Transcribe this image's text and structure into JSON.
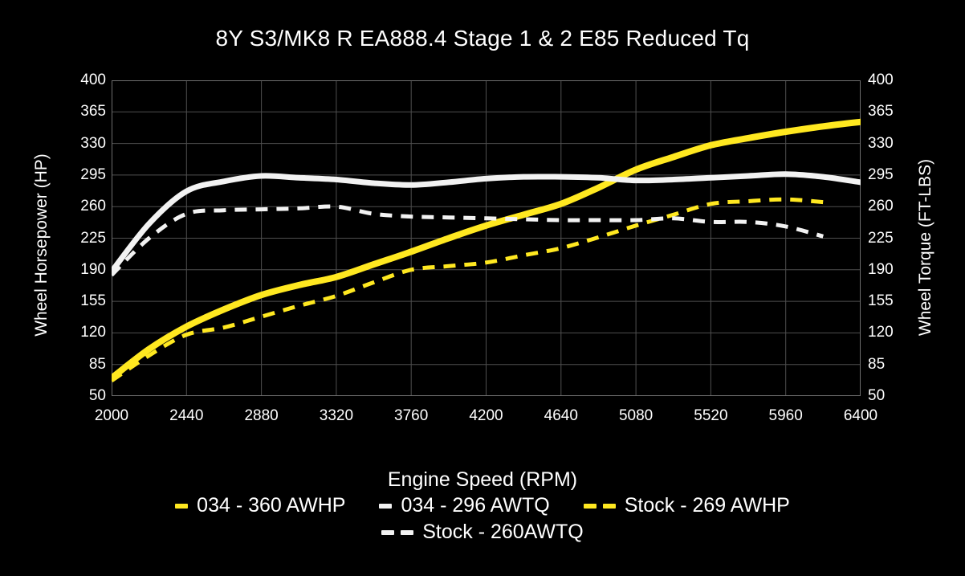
{
  "title": "8Y S3/MK8 R EA888.4 Stage 1 & 2 E85 Reduced Tq",
  "colors": {
    "background": "#000000",
    "text": "#ffffff",
    "grid": "#4f4f4f",
    "plot_border": "#6e6e6e",
    "accent_yellow": "#ffe820",
    "accent_white": "#f2f2f2"
  },
  "chart_data": {
    "type": "line",
    "title": "8Y S3/MK8 R EA888.4 Stage 1 & 2 E85 Reduced Tq",
    "xlabel": "Engine Speed (RPM)",
    "ylabel_left": "Wheel Horsepower (HP)",
    "ylabel_right": "Wheel Torque (FT-LBS)",
    "xlim": [
      2000,
      6400
    ],
    "ylim": [
      50,
      400
    ],
    "x_ticks": [
      2000,
      2440,
      2880,
      3320,
      3760,
      4200,
      4640,
      5080,
      5520,
      5960,
      6400
    ],
    "y_ticks": [
      50,
      85,
      120,
      155,
      190,
      225,
      260,
      295,
      330,
      365,
      400
    ],
    "grid": true,
    "legend_position": "bottom",
    "x": [
      2000,
      2220,
      2440,
      2660,
      2880,
      3100,
      3320,
      3540,
      3760,
      3980,
      4200,
      4420,
      4640,
      4860,
      5080,
      5300,
      5520,
      5740,
      5960,
      6180,
      6400
    ],
    "series": [
      {
        "name": "034 - 360 AWHP",
        "color": "#ffe820",
        "style": "solid",
        "stroke_width": 8,
        "values": [
          70,
          102,
          127,
          146,
          162,
          173,
          182,
          196,
          210,
          225,
          239,
          251,
          263,
          281,
          301,
          315,
          328,
          336,
          343,
          349,
          354
        ]
      },
      {
        "name": "034 - 296 AWTQ",
        "color": "#f2f2f2",
        "style": "solid",
        "stroke_width": 7,
        "values": [
          188,
          241,
          277,
          288,
          294,
          292,
          290,
          286,
          284,
          287,
          291,
          293,
          293,
          292,
          289,
          290,
          292,
          294,
          296,
          293,
          287
        ]
      },
      {
        "name": "Stock - 269 AWHP",
        "color": "#ffe820",
        "style": "dashed",
        "stroke_width": 5,
        "values": [
          67,
          95,
          118,
          126,
          138,
          150,
          161,
          176,
          190,
          194,
          198,
          206,
          214,
          226,
          239,
          251,
          263,
          266,
          268,
          265,
          null
        ]
      },
      {
        "name": "Stock - 260AWTQ",
        "color": "#f2f2f2",
        "style": "dashed",
        "stroke_width": 5,
        "values": [
          184,
          225,
          252,
          256,
          257,
          258,
          260,
          252,
          249,
          248,
          247,
          246,
          245,
          245,
          245,
          247,
          243,
          243,
          238,
          227,
          null
        ]
      }
    ]
  },
  "legend": {
    "items": [
      {
        "label": "034 - 360 AWHP",
        "color": "#ffe820",
        "marker": "solid"
      },
      {
        "label": "034 - 296 AWTQ",
        "color": "#f2f2f2",
        "marker": "solid"
      },
      {
        "label": "Stock - 269 AWHP",
        "color": "#ffe820",
        "marker": "dashed"
      },
      {
        "label": "Stock - 260AWTQ",
        "color": "#f2f2f2",
        "marker": "dashed"
      }
    ]
  }
}
